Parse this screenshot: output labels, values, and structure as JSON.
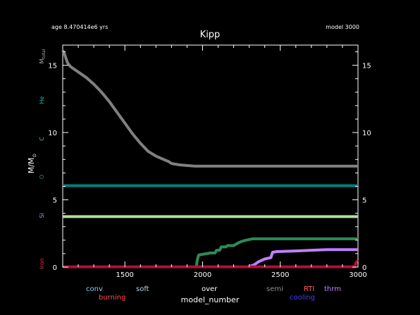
{
  "header": {
    "age_text": "age 8.470414e6 yrs",
    "model_text": "model 3000"
  },
  "chart_data": {
    "type": "line",
    "title": "Kipp",
    "xlabel": "model_number",
    "ylabel": "M/M",
    "ylabel_sub": "⊙",
    "xlim": [
      1100,
      3000
    ],
    "ylim": [
      0,
      16.5
    ],
    "xticks": [
      1500,
      2000,
      2500,
      3000
    ],
    "yticks": [
      0,
      5,
      10,
      15
    ],
    "series": [
      {
        "name": "M_total",
        "color": "#808080",
        "x": [
          1100,
          1110,
          1130,
          1150,
          1200,
          1250,
          1300,
          1350,
          1400,
          1450,
          1500,
          1550,
          1600,
          1650,
          1700,
          1750,
          1780,
          1800,
          1850,
          1900,
          1950,
          2000,
          2500,
          3000
        ],
        "y": [
          16.1,
          15.9,
          15.2,
          14.9,
          14.5,
          14.1,
          13.6,
          13.0,
          12.3,
          11.5,
          10.7,
          9.9,
          9.2,
          8.6,
          8.25,
          8.0,
          7.85,
          7.7,
          7.6,
          7.55,
          7.5,
          7.5,
          7.5,
          7.5
        ]
      },
      {
        "name": "He",
        "color": "#008080",
        "x": [
          1100,
          3000
        ],
        "y": [
          6.05,
          6.05
        ]
      },
      {
        "name": "Si",
        "color": "#b0e0a0",
        "x": [
          1100,
          3000
        ],
        "y": [
          3.75,
          3.75
        ]
      },
      {
        "name": "O",
        "color": "#2e8b57",
        "x": [
          1960,
          1965,
          1975,
          2000,
          2050,
          2080,
          2090,
          2110,
          2120,
          2150,
          2160,
          2200,
          2230,
          2250,
          2280,
          2300,
          2320,
          2350,
          2500,
          3000
        ],
        "y": [
          0,
          0.5,
          0.9,
          0.95,
          1.05,
          1.05,
          1.25,
          1.25,
          1.5,
          1.5,
          1.6,
          1.6,
          1.8,
          1.9,
          2.0,
          2.05,
          2.1,
          2.1,
          2.1,
          2.1
        ]
      },
      {
        "name": "C",
        "color": "#c080ff",
        "x": [
          2300,
          2330,
          2360,
          2400,
          2440,
          2450,
          2480,
          2600,
          2700,
          2800,
          2900,
          3000
        ],
        "y": [
          0.05,
          0.15,
          0.4,
          0.6,
          0.7,
          1.1,
          1.15,
          1.2,
          1.25,
          1.3,
          1.3,
          1.3
        ]
      },
      {
        "name": "Iron",
        "color": "#b0103a",
        "x": [
          1100,
          2980,
          2985,
          3000
        ],
        "y": [
          0.02,
          0.02,
          0.3,
          0.5
        ]
      }
    ]
  },
  "side_labels": [
    {
      "text": "M",
      "sub": "total",
      "color": "#b0b0b0"
    },
    {
      "text": "He",
      "color": "#20b2aa"
    },
    {
      "text": "C",
      "color": "#66cc66"
    },
    {
      "text": "O",
      "color": "#2e8b57"
    },
    {
      "text": "Si",
      "color": "#c080ff"
    },
    {
      "text": "Iron",
      "color": "#e03050"
    }
  ],
  "legend": [
    {
      "label": "conv",
      "color": "#87cefa"
    },
    {
      "label": "burning",
      "color": "#ff4d4d"
    },
    {
      "label": "soft",
      "color": "#add8e6"
    },
    {
      "label": "over",
      "color": "#ffffff"
    },
    {
      "label": "semi",
      "color": "#909090"
    },
    {
      "label": "RTI",
      "color": "#ff6060"
    },
    {
      "label": "cooling",
      "color": "#4040ff"
    },
    {
      "label": "thrm",
      "color": "#c080ff"
    }
  ]
}
